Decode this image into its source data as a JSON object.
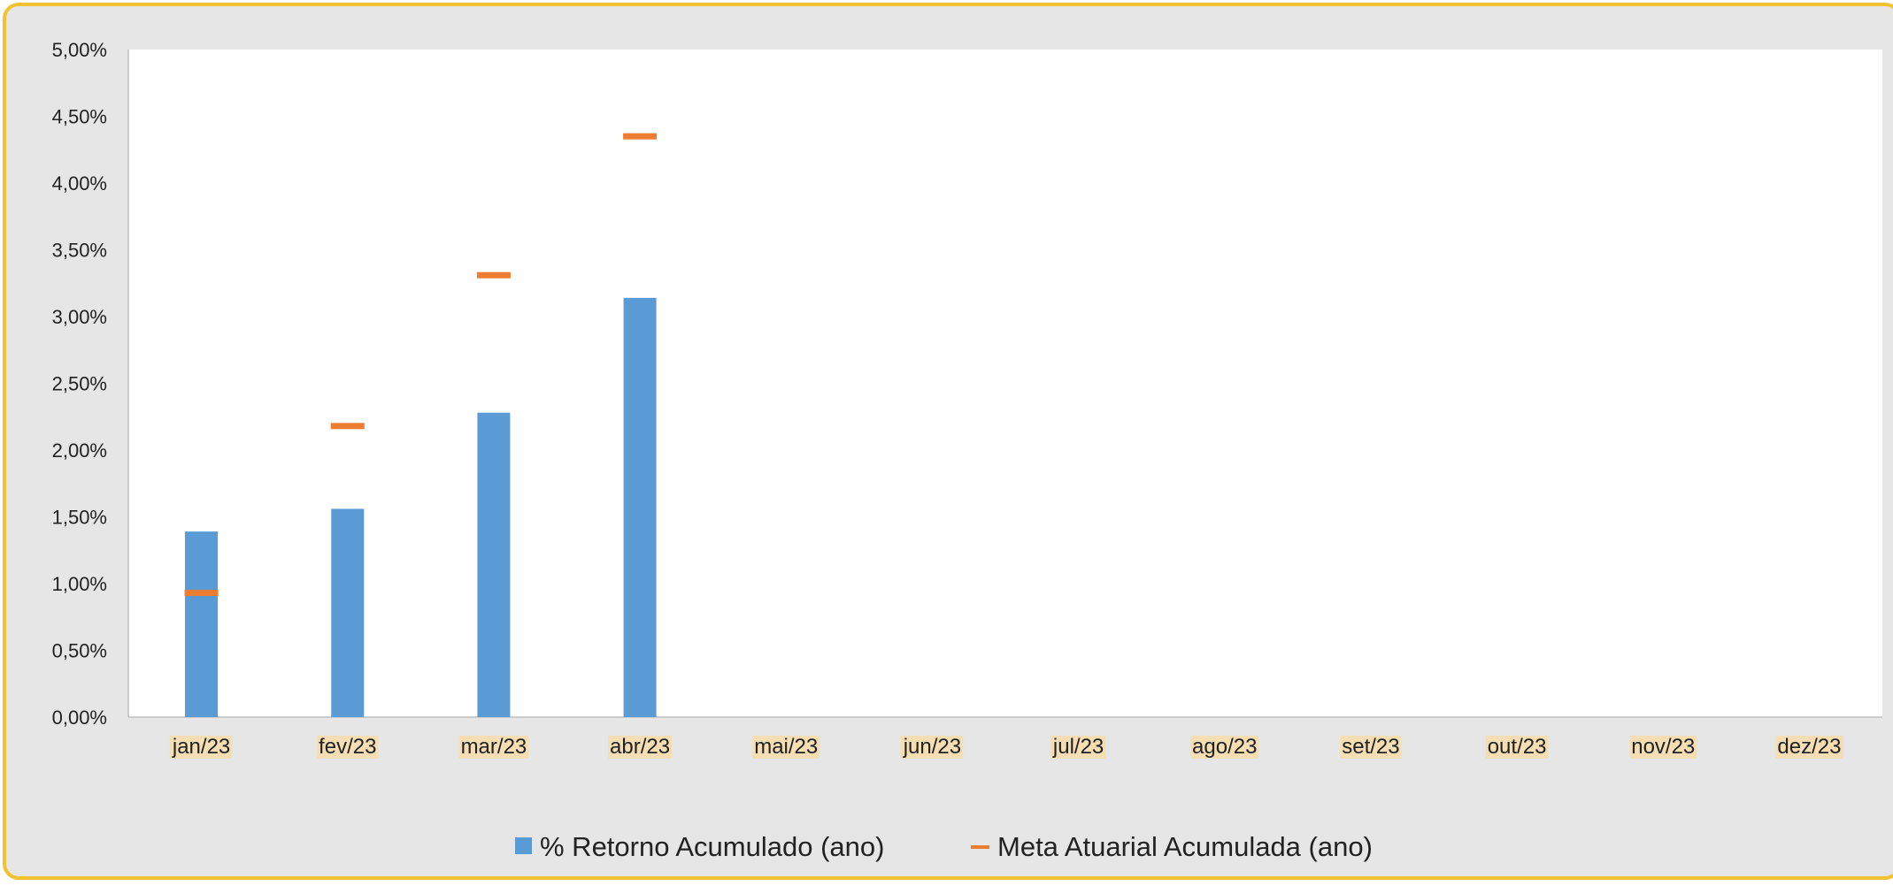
{
  "chart_data": {
    "type": "bar",
    "categories": [
      "jan/23",
      "fev/23",
      "mar/23",
      "abr/23",
      "mai/23",
      "jun/23",
      "jul/23",
      "ago/23",
      "set/23",
      "out/23",
      "nov/23",
      "dez/23"
    ],
    "series": [
      {
        "name": "% Retorno Acumulado (ano)",
        "kind": "bar",
        "color": "#5b9bd5",
        "values": [
          1.39,
          1.56,
          2.28,
          3.14,
          null,
          null,
          null,
          null,
          null,
          null,
          null,
          null
        ]
      },
      {
        "name": "Meta Atuarial Acumulada (ano)",
        "kind": "marker",
        "color": "#ed7d31",
        "values": [
          0.93,
          2.18,
          3.31,
          4.35,
          null,
          null,
          null,
          null,
          null,
          null,
          null,
          null
        ]
      }
    ],
    "y_ticks": [
      "0,00%",
      "0,50%",
      "1,00%",
      "1,50%",
      "2,00%",
      "2,50%",
      "3,00%",
      "3,50%",
      "4,00%",
      "4,50%",
      "5,00%"
    ],
    "ylim": [
      0,
      5
    ],
    "title": "",
    "xlabel": "",
    "ylabel": "",
    "grid": false,
    "legend_position": "bottom",
    "colors": {
      "plot_background": "#ffffff",
      "chart_background": "#e6e6e6",
      "border": "#f2c230",
      "tick_label_highlight": "#f5deb3"
    }
  }
}
